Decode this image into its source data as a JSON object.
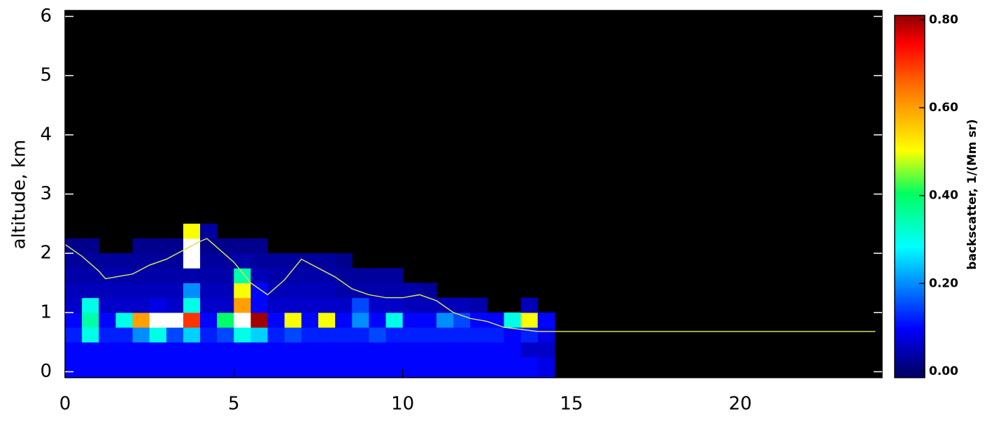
{
  "chart_data": {
    "type": "heatmap",
    "y_label": "altitude, km",
    "colorbar_label": "backscatter, 1/(Mm sr)",
    "xlim": [
      0,
      24.2
    ],
    "xticks": [
      0,
      5,
      10,
      15,
      20
    ],
    "ylim": [
      -0.1,
      6.1
    ],
    "yticks": [
      0,
      1,
      2,
      3,
      4,
      5,
      6
    ],
    "clim": [
      0,
      0.81
    ],
    "cticks": [
      {
        "value": 0,
        "label": "0.00"
      },
      {
        "value": 0.2,
        "label": "0.20"
      },
      {
        "value": 0.4,
        "label": "0.40"
      },
      {
        "value": 0.6,
        "label": "0.60"
      },
      {
        "value": 0.8,
        "label": "0.80"
      }
    ],
    "xbins": [
      0,
      0.5,
      1,
      1.5,
      2,
      2.5,
      3,
      3.5,
      4,
      4.5,
      5,
      5.5,
      6,
      6.5,
      7,
      7.5,
      8,
      8.5,
      9,
      9.5,
      10,
      10.5,
      11,
      11.5,
      12,
      12.5,
      13,
      13.5,
      14,
      14.5
    ],
    "ybins": [
      0,
      0.25,
      0.5,
      0.75,
      1,
      1.25,
      1.5,
      1.75,
      2,
      2.25,
      2.5
    ],
    "z": [
      [
        0.1,
        0.1,
        0.1,
        0.1,
        0.1,
        0.1,
        0.1,
        0.1,
        0.1,
        0.1,
        0.1,
        0.1,
        0.1,
        0.1,
        0.1,
        0.1,
        0.1,
        0.1,
        0.1,
        0.1,
        0.1,
        0.1,
        0.1,
        0.1,
        0.1,
        0.1,
        0.1,
        0.1,
        0.08
      ],
      [
        0.1,
        0.1,
        0.1,
        0.1,
        0.1,
        0.1,
        0.1,
        0.1,
        0.1,
        0.1,
        0.1,
        0.1,
        0.1,
        0.1,
        0.1,
        0.1,
        0.1,
        0.1,
        0.1,
        0.1,
        0.1,
        0.1,
        0.1,
        0.1,
        0.1,
        0.1,
        0.1,
        0.06,
        0.06
      ],
      [
        0.12,
        0.3,
        0.12,
        0.12,
        0.2,
        0.3,
        0.15,
        0.25,
        0.12,
        0.15,
        0.3,
        0.25,
        0.12,
        0.15,
        0.12,
        0.12,
        0.12,
        0.12,
        0.15,
        0.12,
        0.12,
        0.12,
        0.12,
        0.12,
        0.12,
        0.12,
        0.1,
        0.12,
        0.08
      ],
      [
        0.1,
        0.35,
        0.1,
        0.3,
        0.6,
        0.9,
        0.85,
        0.7,
        0.1,
        0.4,
        0.95,
        0.8,
        0.1,
        0.5,
        0.1,
        0.5,
        0.1,
        0.2,
        0.1,
        0.3,
        0.1,
        0.1,
        0.2,
        0.15,
        0.1,
        0.1,
        0.3,
        0.5,
        0.1
      ],
      [
        0.06,
        0.3,
        0.06,
        0.06,
        0.06,
        0.08,
        0.06,
        0.3,
        0.06,
        0.06,
        0.6,
        0.1,
        0.06,
        0.06,
        0.06,
        0.06,
        0.06,
        0.15,
        0.06,
        0.06,
        0.05,
        0.05,
        0.05,
        0.05,
        0.04,
        null,
        null,
        0.05,
        null
      ],
      [
        0.05,
        0.05,
        0.05,
        0.05,
        0.05,
        0.05,
        0.05,
        0.2,
        0.05,
        0.05,
        0.5,
        0.1,
        0.05,
        0.05,
        0.05,
        0.05,
        0.04,
        0.04,
        0.04,
        0.04,
        0.04,
        0.03,
        null,
        null,
        null,
        null,
        null,
        null,
        null
      ],
      [
        0.04,
        0.04,
        0.04,
        0.04,
        0.04,
        0.04,
        0.04,
        0.04,
        0.04,
        0.04,
        0.35,
        0.05,
        0.04,
        0.04,
        0.04,
        0.04,
        0.03,
        0.03,
        0.03,
        0.03,
        null,
        null,
        null,
        null,
        null,
        null,
        null,
        null,
        null
      ],
      [
        0.03,
        0.03,
        0.03,
        0.03,
        0.03,
        0.03,
        0.03,
        0.9,
        0.03,
        0.03,
        0.04,
        0.03,
        0.03,
        0.03,
        0.03,
        0.03,
        0.02,
        null,
        null,
        null,
        null,
        null,
        null,
        null,
        null,
        null,
        null,
        null,
        null
      ],
      [
        0.02,
        0.02,
        null,
        null,
        0.02,
        0.02,
        0.02,
        0.9,
        0.02,
        0.02,
        0.02,
        0.02,
        null,
        null,
        null,
        null,
        null,
        null,
        null,
        null,
        null,
        null,
        null,
        null,
        null,
        null,
        null,
        null,
        null
      ],
      [
        null,
        null,
        null,
        null,
        null,
        null,
        null,
        0.5,
        0.03,
        null,
        null,
        null,
        null,
        null,
        null,
        null,
        null,
        null,
        null,
        null,
        null,
        null,
        null,
        null,
        null,
        null,
        null,
        null,
        null
      ]
    ],
    "line": {
      "color": "#d4e157",
      "x": [
        0,
        0.5,
        1,
        1.2,
        1.5,
        2,
        2.5,
        3,
        3.5,
        4,
        4.2,
        4.5,
        5,
        5.5,
        6,
        6.5,
        7,
        7.5,
        8,
        8.5,
        9,
        9.5,
        10,
        10.5,
        11,
        11.5,
        12,
        12.5,
        13,
        14,
        24
      ],
      "y": [
        2.15,
        1.95,
        1.7,
        1.57,
        1.6,
        1.65,
        1.8,
        1.9,
        2.05,
        2.2,
        2.25,
        2.1,
        1.85,
        1.5,
        1.3,
        1.55,
        1.9,
        1.75,
        1.6,
        1.4,
        1.3,
        1.25,
        1.25,
        1.3,
        1.2,
        1,
        0.9,
        0.85,
        0.75,
        0.68,
        0.68
      ]
    }
  }
}
